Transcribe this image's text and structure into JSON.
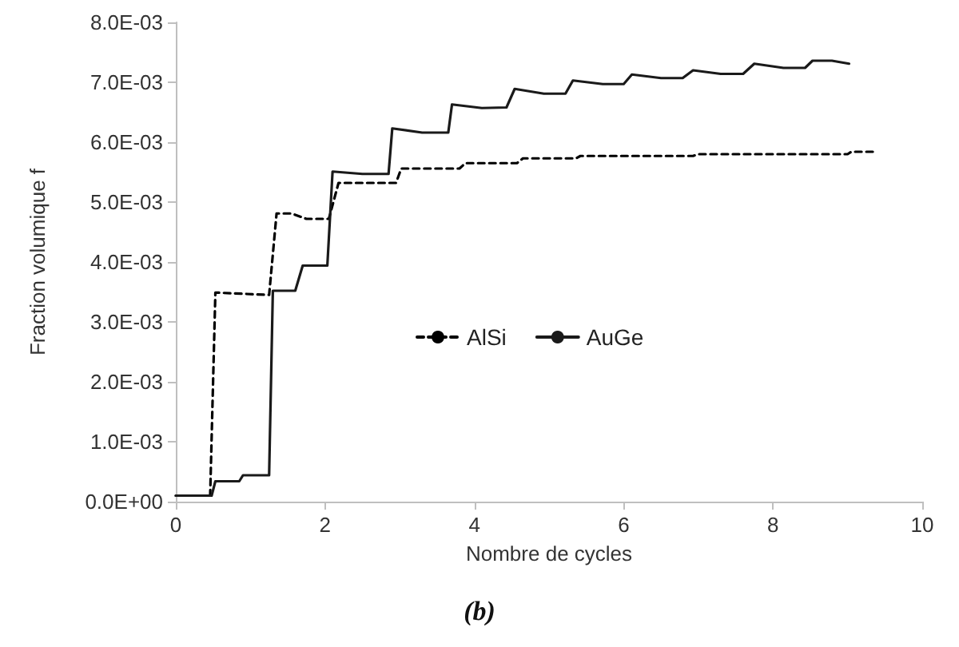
{
  "chart_data": {
    "type": "line",
    "xlabel": "Nombre de cycles",
    "ylabel": "Fraction volumique f",
    "annotations": [
      "(b)"
    ],
    "xlim": [
      0,
      10
    ],
    "xticks": [
      0,
      2,
      4,
      6,
      8,
      10
    ],
    "ylim": [
      0,
      0.008
    ],
    "yticks": [
      {
        "value": 0,
        "label": "0.0E+00"
      },
      {
        "value": 0.001,
        "label": "1.0E-03"
      },
      {
        "value": 0.002,
        "label": "2.0E-03"
      },
      {
        "value": 0.003,
        "label": "3.0E-03"
      },
      {
        "value": 0.004,
        "label": "4.0E-03"
      },
      {
        "value": 0.005,
        "label": "5.0E-03"
      },
      {
        "value": 0.006,
        "label": "6.0E-03"
      },
      {
        "value": 0.007,
        "label": "7.0E-03"
      },
      {
        "value": 0.008,
        "label": "8.0E-03"
      }
    ],
    "grid": false,
    "legend": "center",
    "marker": "none",
    "series": [
      {
        "name": "AlSi",
        "color": "#000000",
        "line_style": "dashed",
        "x": [
          0,
          0.46,
          0.53,
          1.25,
          1.35,
          1.55,
          1.75,
          2.05,
          2.18,
          2.95,
          3.02,
          3.8,
          3.88,
          4.57,
          4.65,
          5.36,
          5.42,
          6.93,
          7.0,
          9.0,
          9.05,
          9.39
        ],
        "values": [
          0.0001,
          0.0001,
          0.00349,
          0.00345,
          0.00481,
          0.00481,
          0.00472,
          0.00472,
          0.00532,
          0.00532,
          0.00556,
          0.00556,
          0.00565,
          0.00565,
          0.00573,
          0.00573,
          0.00577,
          0.00577,
          0.0058,
          0.0058,
          0.00584,
          0.00584
        ]
      },
      {
        "name": "AuGe",
        "color": "#1a1a1a",
        "line_style": "solid",
        "x": [
          0,
          0.48,
          0.53,
          0.85,
          0.9,
          1.25,
          1.3,
          1.6,
          1.7,
          2.03,
          2.1,
          2.5,
          2.85,
          2.9,
          3.3,
          3.65,
          3.7,
          4.1,
          4.43,
          4.54,
          4.93,
          5.22,
          5.32,
          5.72,
          6.0,
          6.11,
          6.5,
          6.79,
          6.93,
          7.3,
          7.6,
          7.75,
          8.14,
          8.43,
          8.53,
          8.79,
          9.02
        ],
        "values": [
          0.0001,
          0.0001,
          0.00034,
          0.00034,
          0.00044,
          0.00044,
          0.00352,
          0.00352,
          0.00394,
          0.00394,
          0.00551,
          0.00547,
          0.00547,
          0.00623,
          0.00616,
          0.00616,
          0.00663,
          0.00657,
          0.00658,
          0.00689,
          0.00681,
          0.00681,
          0.00703,
          0.00697,
          0.00697,
          0.00713,
          0.00707,
          0.00707,
          0.0072,
          0.00714,
          0.00714,
          0.00731,
          0.00724,
          0.00724,
          0.00736,
          0.00736,
          0.00731
        ]
      }
    ]
  }
}
